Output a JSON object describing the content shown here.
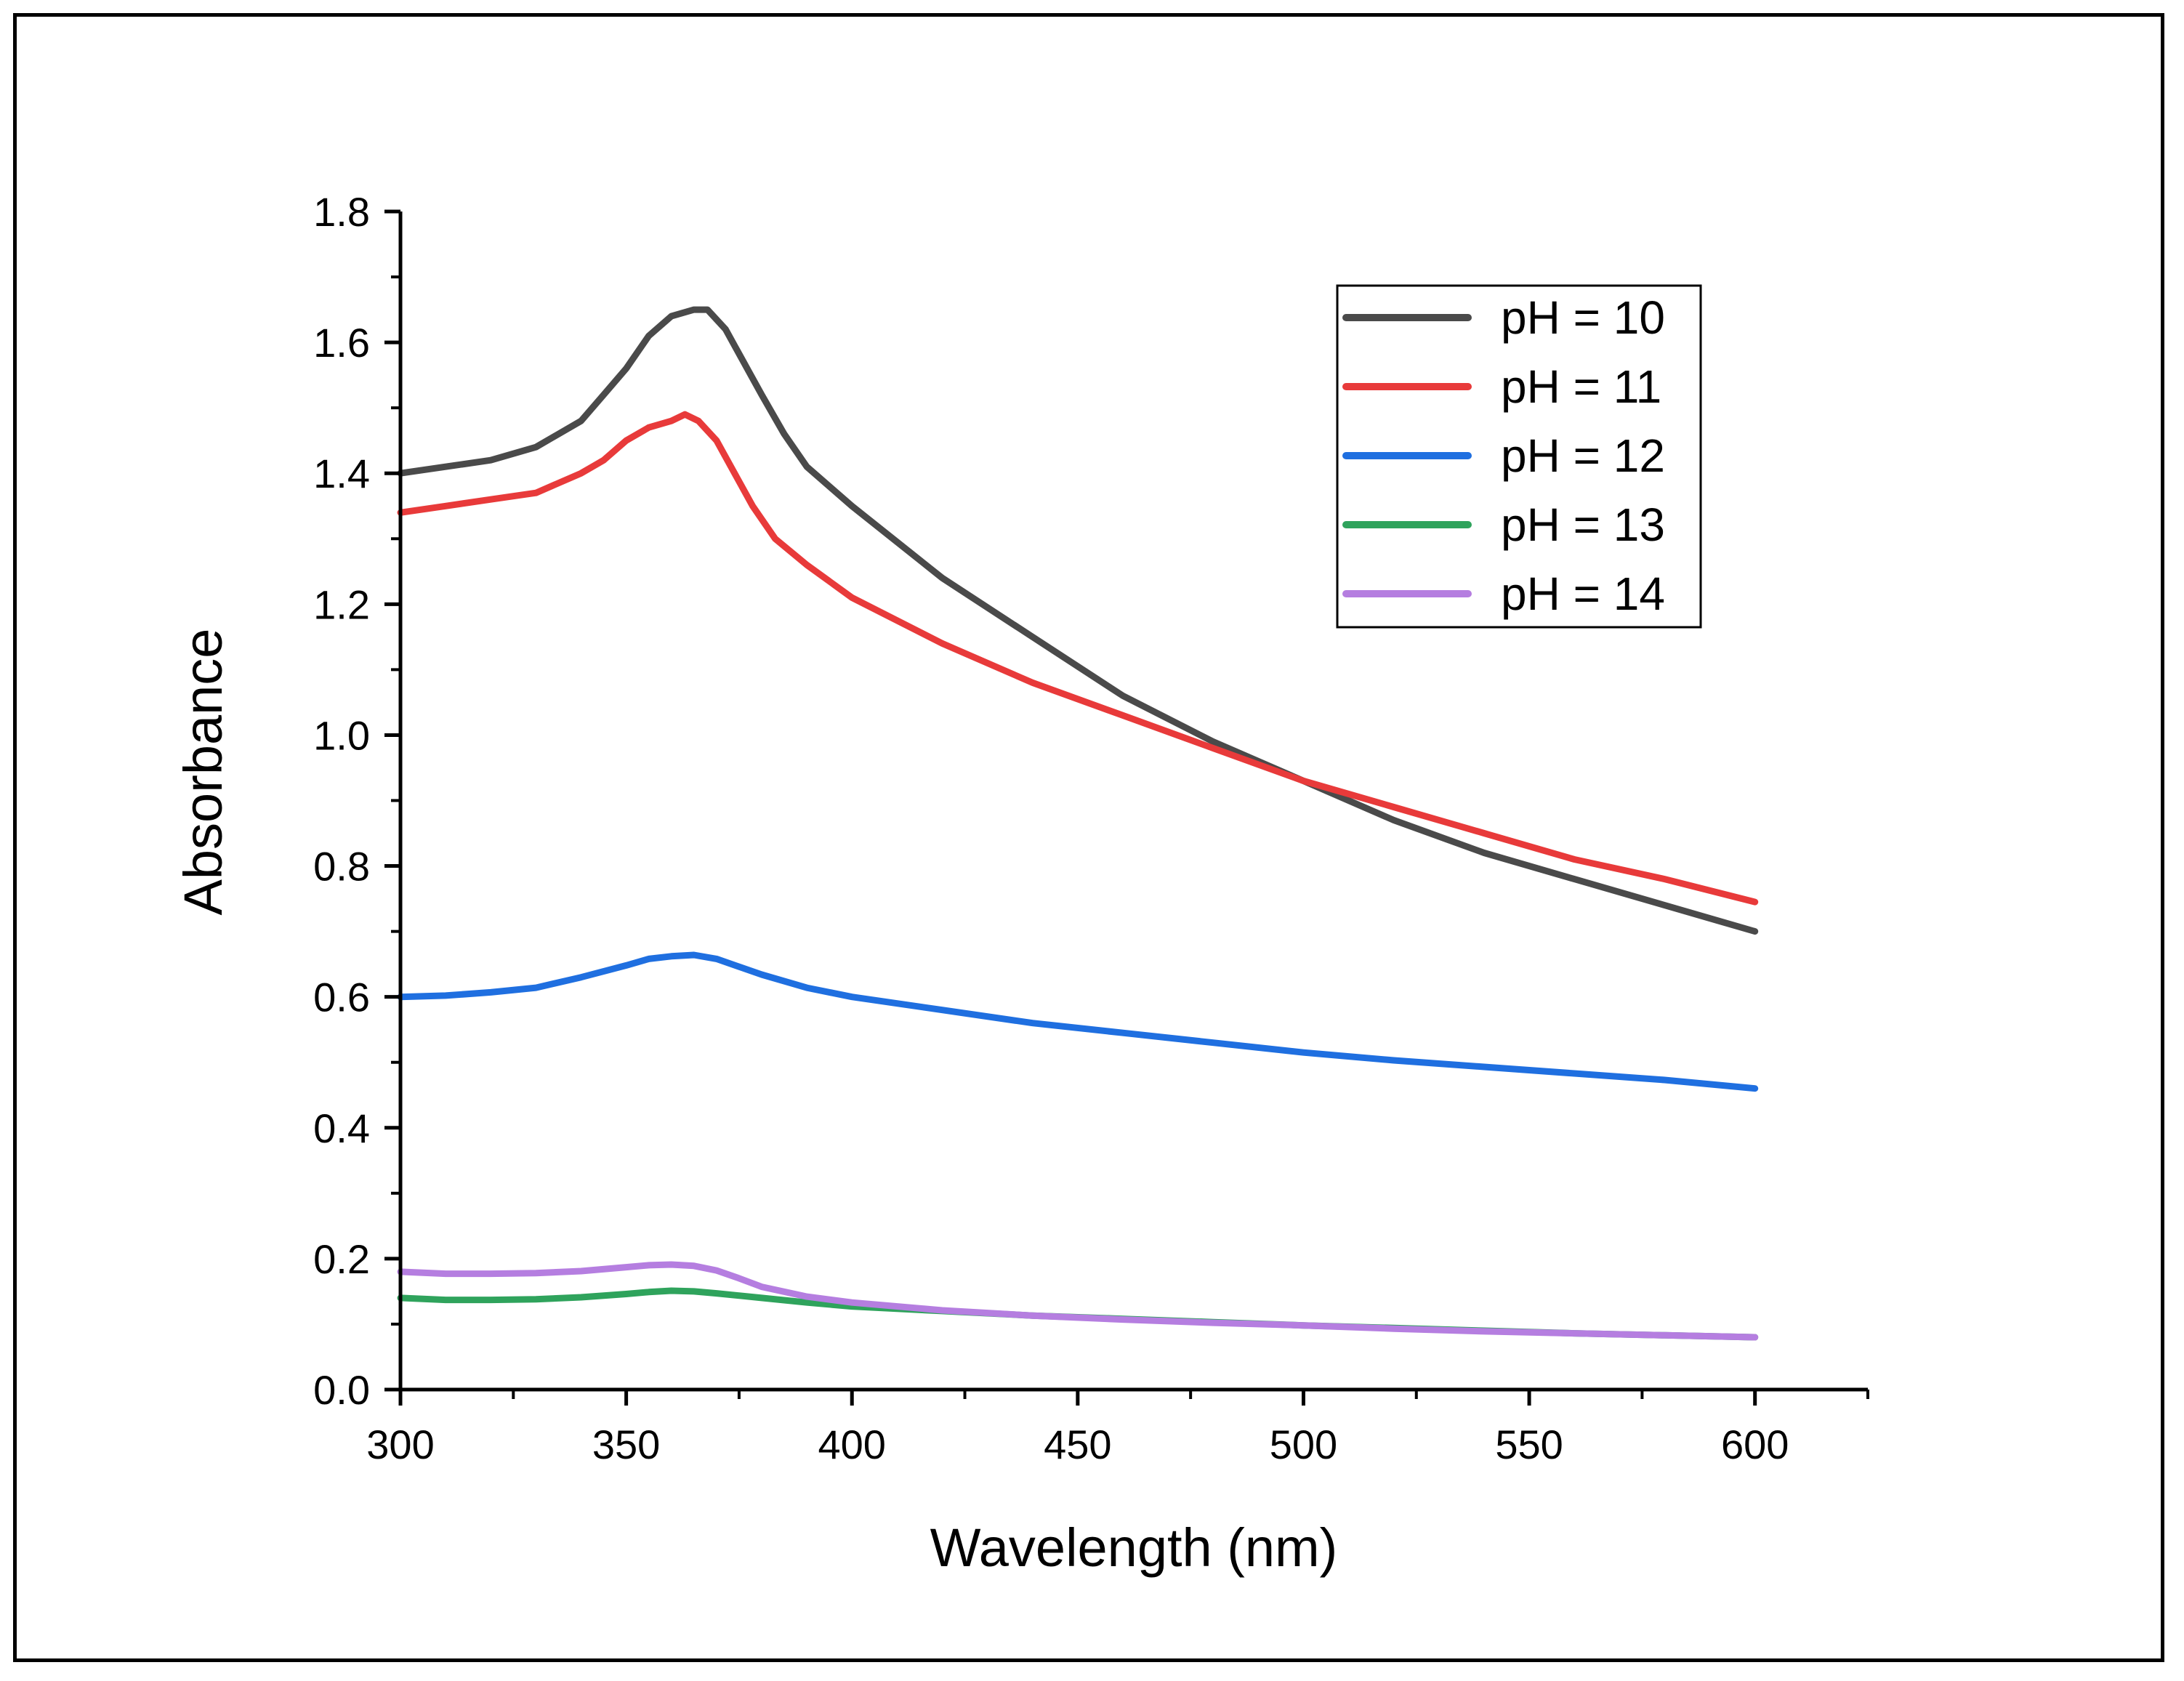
{
  "chart_data": {
    "type": "line",
    "title": "",
    "xlabel": "Wavelength (nm)",
    "ylabel": "Absorbance",
    "xlim": [
      300,
      625
    ],
    "ylim": [
      0.0,
      1.8
    ],
    "xticks": [
      300,
      350,
      400,
      450,
      500,
      550,
      600
    ],
    "xtick_labels": [
      "300",
      "350",
      "400",
      "450",
      "500",
      "550",
      "600"
    ],
    "yticks": [
      0.0,
      0.2,
      0.4,
      0.6,
      0.8,
      1.0,
      1.2,
      1.4,
      1.6,
      1.8
    ],
    "ytick_labels": [
      "0.0",
      "0.2",
      "0.4",
      "0.6",
      "0.8",
      "1.0",
      "1.2",
      "1.4",
      "1.6",
      "1.8"
    ],
    "grid": false,
    "legend_position": "top-right",
    "series": [
      {
        "name": "pH = 10",
        "color": "#4a4a4a",
        "x": [
          300,
          310,
          320,
          330,
          340,
          345,
          350,
          355,
          360,
          365,
          368,
          372,
          376,
          380,
          385,
          390,
          400,
          420,
          440,
          460,
          480,
          500,
          520,
          540,
          560,
          580,
          600
        ],
        "y": [
          1.4,
          1.41,
          1.42,
          1.44,
          1.48,
          1.52,
          1.56,
          1.61,
          1.64,
          1.65,
          1.65,
          1.62,
          1.57,
          1.52,
          1.46,
          1.41,
          1.35,
          1.24,
          1.15,
          1.06,
          0.99,
          0.93,
          0.87,
          0.82,
          0.78,
          0.74,
          0.7
        ]
      },
      {
        "name": "pH = 11",
        "color": "#e83a3a",
        "x": [
          300,
          310,
          320,
          330,
          340,
          345,
          350,
          355,
          360,
          363,
          366,
          370,
          374,
          378,
          383,
          390,
          400,
          420,
          440,
          460,
          480,
          500,
          520,
          540,
          560,
          580,
          600
        ],
        "y": [
          1.34,
          1.35,
          1.36,
          1.37,
          1.4,
          1.42,
          1.45,
          1.47,
          1.48,
          1.49,
          1.48,
          1.45,
          1.4,
          1.35,
          1.3,
          1.26,
          1.21,
          1.14,
          1.08,
          1.03,
          0.98,
          0.93,
          0.89,
          0.85,
          0.81,
          0.78,
          0.745
        ]
      },
      {
        "name": "pH = 12",
        "color": "#1f6fe0",
        "x": [
          300,
          310,
          320,
          330,
          340,
          350,
          355,
          360,
          365,
          370,
          380,
          390,
          400,
          420,
          440,
          460,
          480,
          500,
          520,
          540,
          560,
          580,
          600
        ],
        "y": [
          0.6,
          0.602,
          0.607,
          0.614,
          0.63,
          0.648,
          0.658,
          0.662,
          0.664,
          0.658,
          0.634,
          0.614,
          0.6,
          0.58,
          0.56,
          0.545,
          0.53,
          0.515,
          0.503,
          0.493,
          0.483,
          0.473,
          0.46
        ]
      },
      {
        "name": "pH = 13",
        "color": "#2fa35c",
        "x": [
          300,
          310,
          320,
          330,
          340,
          350,
          355,
          360,
          365,
          370,
          380,
          390,
          400,
          420,
          440,
          460,
          480,
          500,
          520,
          540,
          560,
          580,
          600
        ],
        "y": [
          0.14,
          0.137,
          0.137,
          0.138,
          0.141,
          0.146,
          0.149,
          0.151,
          0.15,
          0.147,
          0.14,
          0.133,
          0.127,
          0.12,
          0.113,
          0.108,
          0.103,
          0.098,
          0.094,
          0.09,
          0.086,
          0.083,
          0.08
        ]
      },
      {
        "name": "pH = 14",
        "color": "#b57ee0",
        "x": [
          300,
          310,
          320,
          330,
          340,
          350,
          355,
          360,
          365,
          370,
          375,
          380,
          390,
          400,
          420,
          440,
          460,
          480,
          500,
          520,
          540,
          560,
          580,
          600
        ],
        "y": [
          0.18,
          0.177,
          0.177,
          0.178,
          0.181,
          0.187,
          0.19,
          0.191,
          0.189,
          0.182,
          0.17,
          0.157,
          0.142,
          0.133,
          0.121,
          0.113,
          0.107,
          0.102,
          0.098,
          0.093,
          0.089,
          0.086,
          0.083,
          0.08
        ]
      }
    ]
  }
}
